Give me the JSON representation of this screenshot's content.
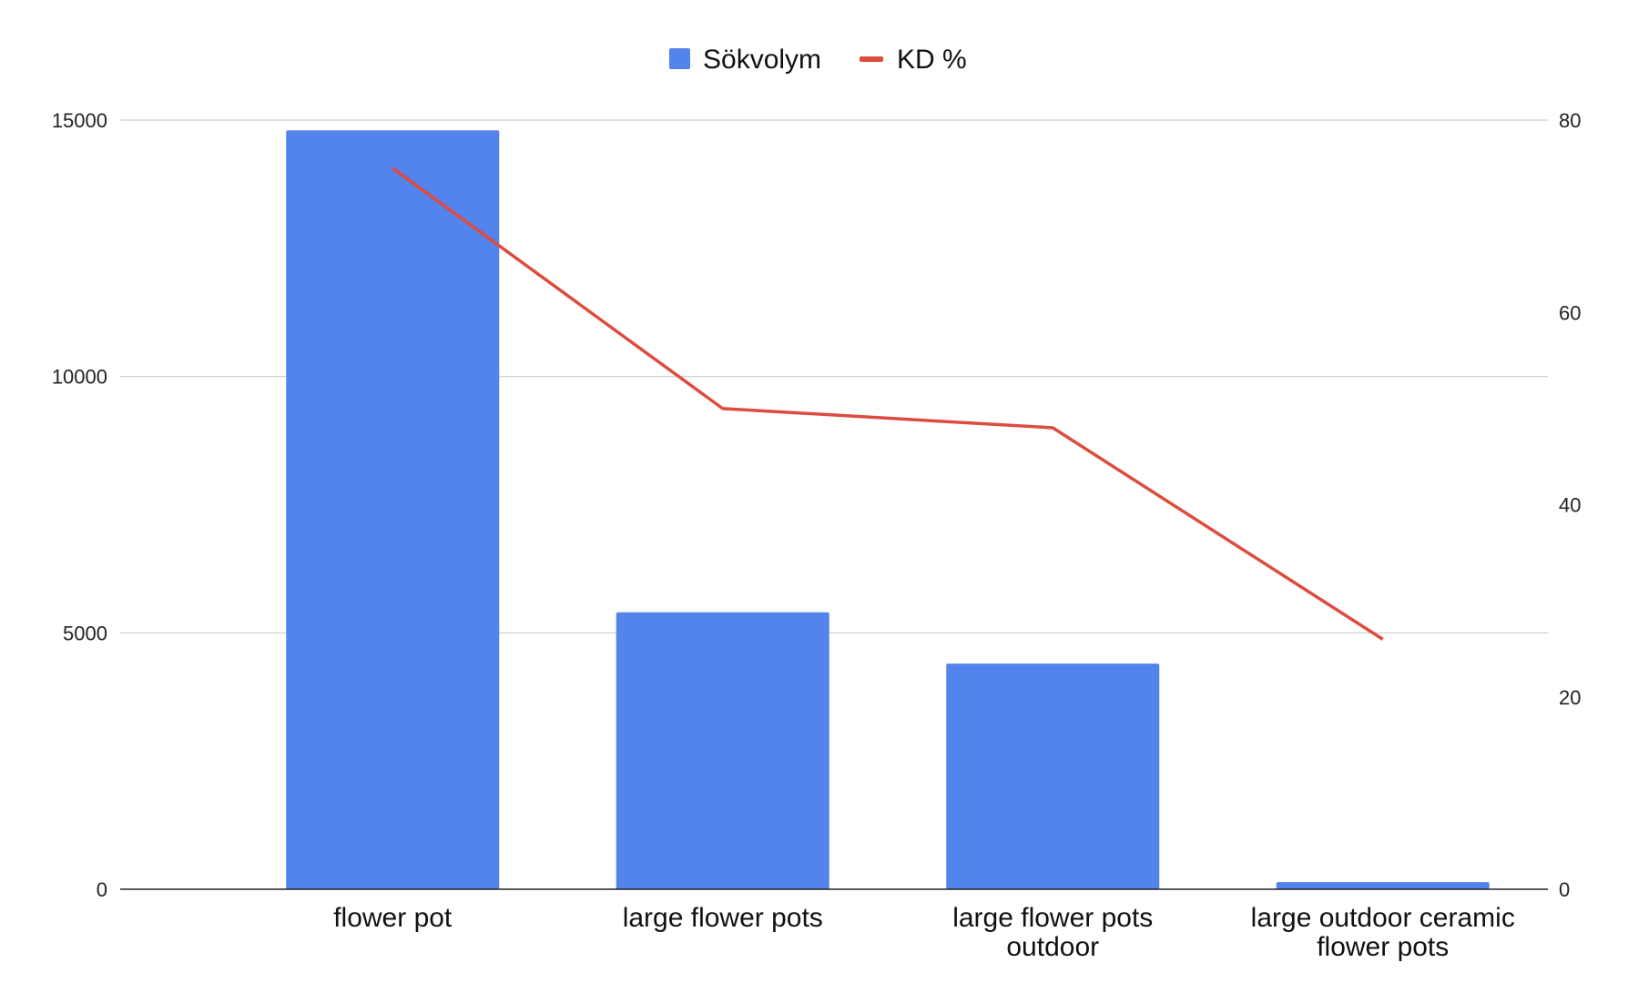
{
  "chart_data": {
    "type": "bar",
    "categories": [
      [
        "flower pot"
      ],
      [
        "large flower pots"
      ],
      [
        "large flower pots",
        "outdoor"
      ],
      [
        "large outdoor ceramic",
        "flower pots"
      ]
    ],
    "series": [
      {
        "name": "Sökvolym",
        "type": "bar",
        "axis": "left",
        "color": "#5383ec",
        "values": [
          14800,
          5400,
          4400,
          140
        ]
      },
      {
        "name": "KD %",
        "type": "line",
        "axis": "right",
        "color": "#dc4c3f",
        "values": [
          75,
          50,
          48,
          26
        ]
      }
    ],
    "y_left": {
      "min": 0,
      "max": 15000,
      "ticks": [
        "0",
        "5000",
        "10000",
        "15000"
      ]
    },
    "y_right": {
      "min": 0,
      "max": 80,
      "ticks": [
        "0",
        "20",
        "40",
        "60",
        "80"
      ]
    },
    "grid": true,
    "legend_position": "top"
  }
}
